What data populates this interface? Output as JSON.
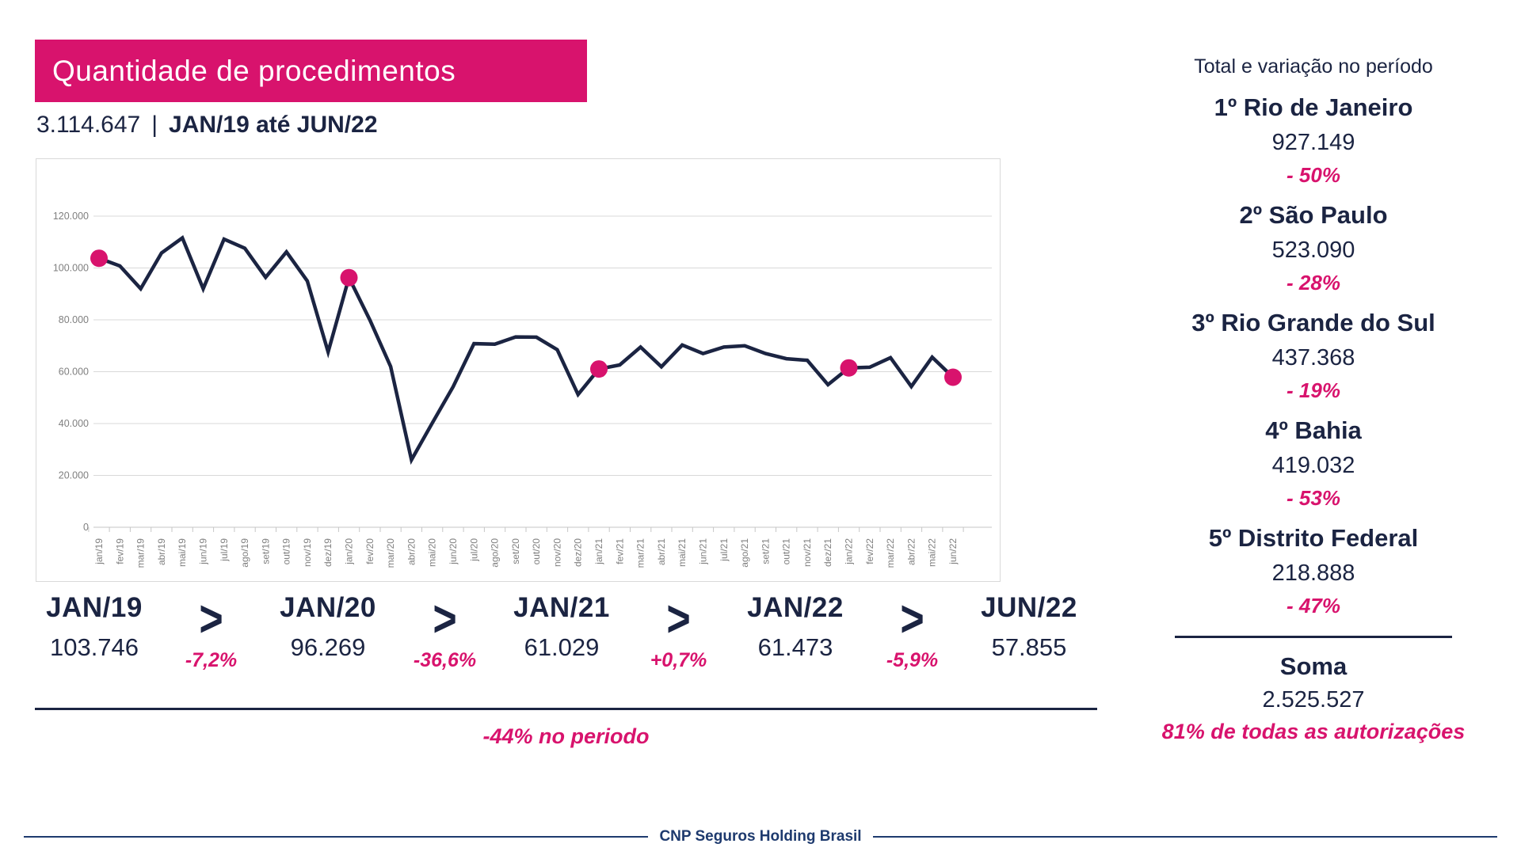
{
  "title": "Quantidade de procedimentos",
  "subtitle": {
    "total": "3.114.647",
    "separator": "|",
    "range": "JAN/19 até JUN/22"
  },
  "chart_data": {
    "type": "line",
    "x": [
      "jan/19",
      "fev/19",
      "mar/19",
      "abr/19",
      "mai/19",
      "jun/19",
      "jul/19",
      "ago/19",
      "set/19",
      "out/19",
      "nov/19",
      "dez/19",
      "jan/20",
      "fev/20",
      "mar/20",
      "abr/20",
      "mai/20",
      "jun/20",
      "jul/20",
      "ago/20",
      "set/20",
      "out/20",
      "nov/20",
      "dez/20",
      "jan/21",
      "fev/21",
      "mar/21",
      "abr/21",
      "mai/21",
      "jun/21",
      "jul/21",
      "ago/21",
      "set/21",
      "out/21",
      "nov/21",
      "dez/21",
      "jan/22",
      "fev/22",
      "mar/22",
      "abr/22",
      "mai/22",
      "jun/22"
    ],
    "values": [
      103746,
      100800,
      92000,
      105800,
      111600,
      92000,
      111100,
      107600,
      96400,
      106200,
      95000,
      67600,
      96269,
      80000,
      62000,
      26000,
      40200,
      54200,
      70800,
      70600,
      73400,
      73300,
      68500,
      51200,
      61029,
      62600,
      69500,
      61900,
      70300,
      67000,
      69500,
      70000,
      67000,
      65000,
      64400,
      55000,
      61473,
      61700,
      65400,
      54300,
      65600,
      57855
    ],
    "highlight_indices": [
      0,
      12,
      24,
      36,
      41
    ],
    "y_ticks": [
      "0",
      "20.000",
      "40.000",
      "60.000",
      "80.000",
      "100.000",
      "120.000"
    ],
    "ylim": [
      0,
      120000
    ],
    "grid": true,
    "legend": "none",
    "line_color": "#1b2442",
    "marker_color": "#d8136d"
  },
  "summary": {
    "chevron": ">",
    "milestones": [
      {
        "label": "JAN/19",
        "value": "103.746"
      },
      {
        "label": "JAN/20",
        "value": "96.269"
      },
      {
        "label": "JAN/21",
        "value": "61.029"
      },
      {
        "label": "JAN/22",
        "value": "61.473"
      },
      {
        "label": "JUN/22",
        "value": "57.855"
      }
    ],
    "changes": [
      "-7,2%",
      "-36,6%",
      "+0,7%",
      "-5,9%"
    ],
    "period_change": "-44% no periodo"
  },
  "sidebar": {
    "title": "Total e variação no período",
    "entries": [
      {
        "name": "1º Rio de Janeiro",
        "value": "927.149",
        "change": "- 50%"
      },
      {
        "name": "2º São Paulo",
        "value": "523.090",
        "change": "- 28%"
      },
      {
        "name": "3º Rio Grande do Sul",
        "value": "437.368",
        "change": "- 19%"
      },
      {
        "name": "4º Bahia",
        "value": "419.032",
        "change": "- 53%"
      },
      {
        "name": "5º Distrito Federal",
        "value": "218.888",
        "change": "- 47%"
      }
    ],
    "soma": {
      "label": "Soma",
      "value": "2.525.527",
      "note": "81% de todas as autorizações"
    }
  },
  "footer": "CNP Seguros Holding Brasil",
  "colors": {
    "pink": "#d8136d",
    "navy": "#1b2442",
    "footer_navy": "#1e3a6e",
    "axis_text": "#7f7f7f",
    "grid": "#d9d9d9"
  }
}
